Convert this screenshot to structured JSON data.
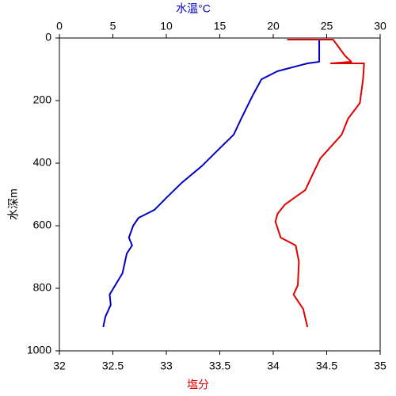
{
  "chart_data": {
    "type": "profile",
    "x_top_label": "水温°C",
    "x_label": "塩分",
    "y_label": "水深m",
    "x_top_lim": [
      0,
      30
    ],
    "x_top_ticks": [
      0,
      5,
      10,
      15,
      20,
      25,
      30
    ],
    "xlim": [
      32,
      35
    ],
    "xticks": [
      32,
      32.5,
      33,
      33.5,
      34,
      34.5,
      35
    ],
    "ylim": [
      0,
      1000
    ],
    "yticks": [
      0,
      200,
      400,
      600,
      800,
      1000
    ],
    "y_inverted": true,
    "series": [
      {
        "color": "#0000c0",
        "axis": "x_top",
        "values": [
          24.3,
          24.3,
          23.2,
          20.4,
          18.9,
          18.1,
          17.0,
          16.3,
          14.8,
          13.3,
          11.5,
          10.0,
          8.9,
          7.4,
          6.9,
          6.5,
          6.8,
          6.3,
          5.9,
          4.7,
          4.8,
          4.3,
          4.1
        ],
        "depths": [
          5,
          76,
          81,
          106,
          132,
          182,
          258,
          309,
          359,
          410,
          461,
          511,
          549,
          575,
          600,
          638,
          663,
          689,
          752,
          820,
          853,
          891,
          924
        ]
      },
      {
        "color": "#e00000",
        "axis": "x",
        "values": [
          34.13,
          34.56,
          34.67,
          34.73,
          34.54,
          34.85,
          34.84,
          34.81,
          34.7,
          34.64,
          34.54,
          34.44,
          34.37,
          34.3,
          34.11,
          34.04,
          34.02,
          34.07,
          34.21,
          34.24,
          34.23,
          34.19,
          34.28,
          34.32
        ],
        "depths": [
          5,
          5,
          56,
          76,
          81,
          81,
          132,
          208,
          258,
          309,
          347,
          385,
          435,
          486,
          532,
          562,
          587,
          638,
          663,
          714,
          790,
          820,
          866,
          924
        ]
      }
    ]
  }
}
